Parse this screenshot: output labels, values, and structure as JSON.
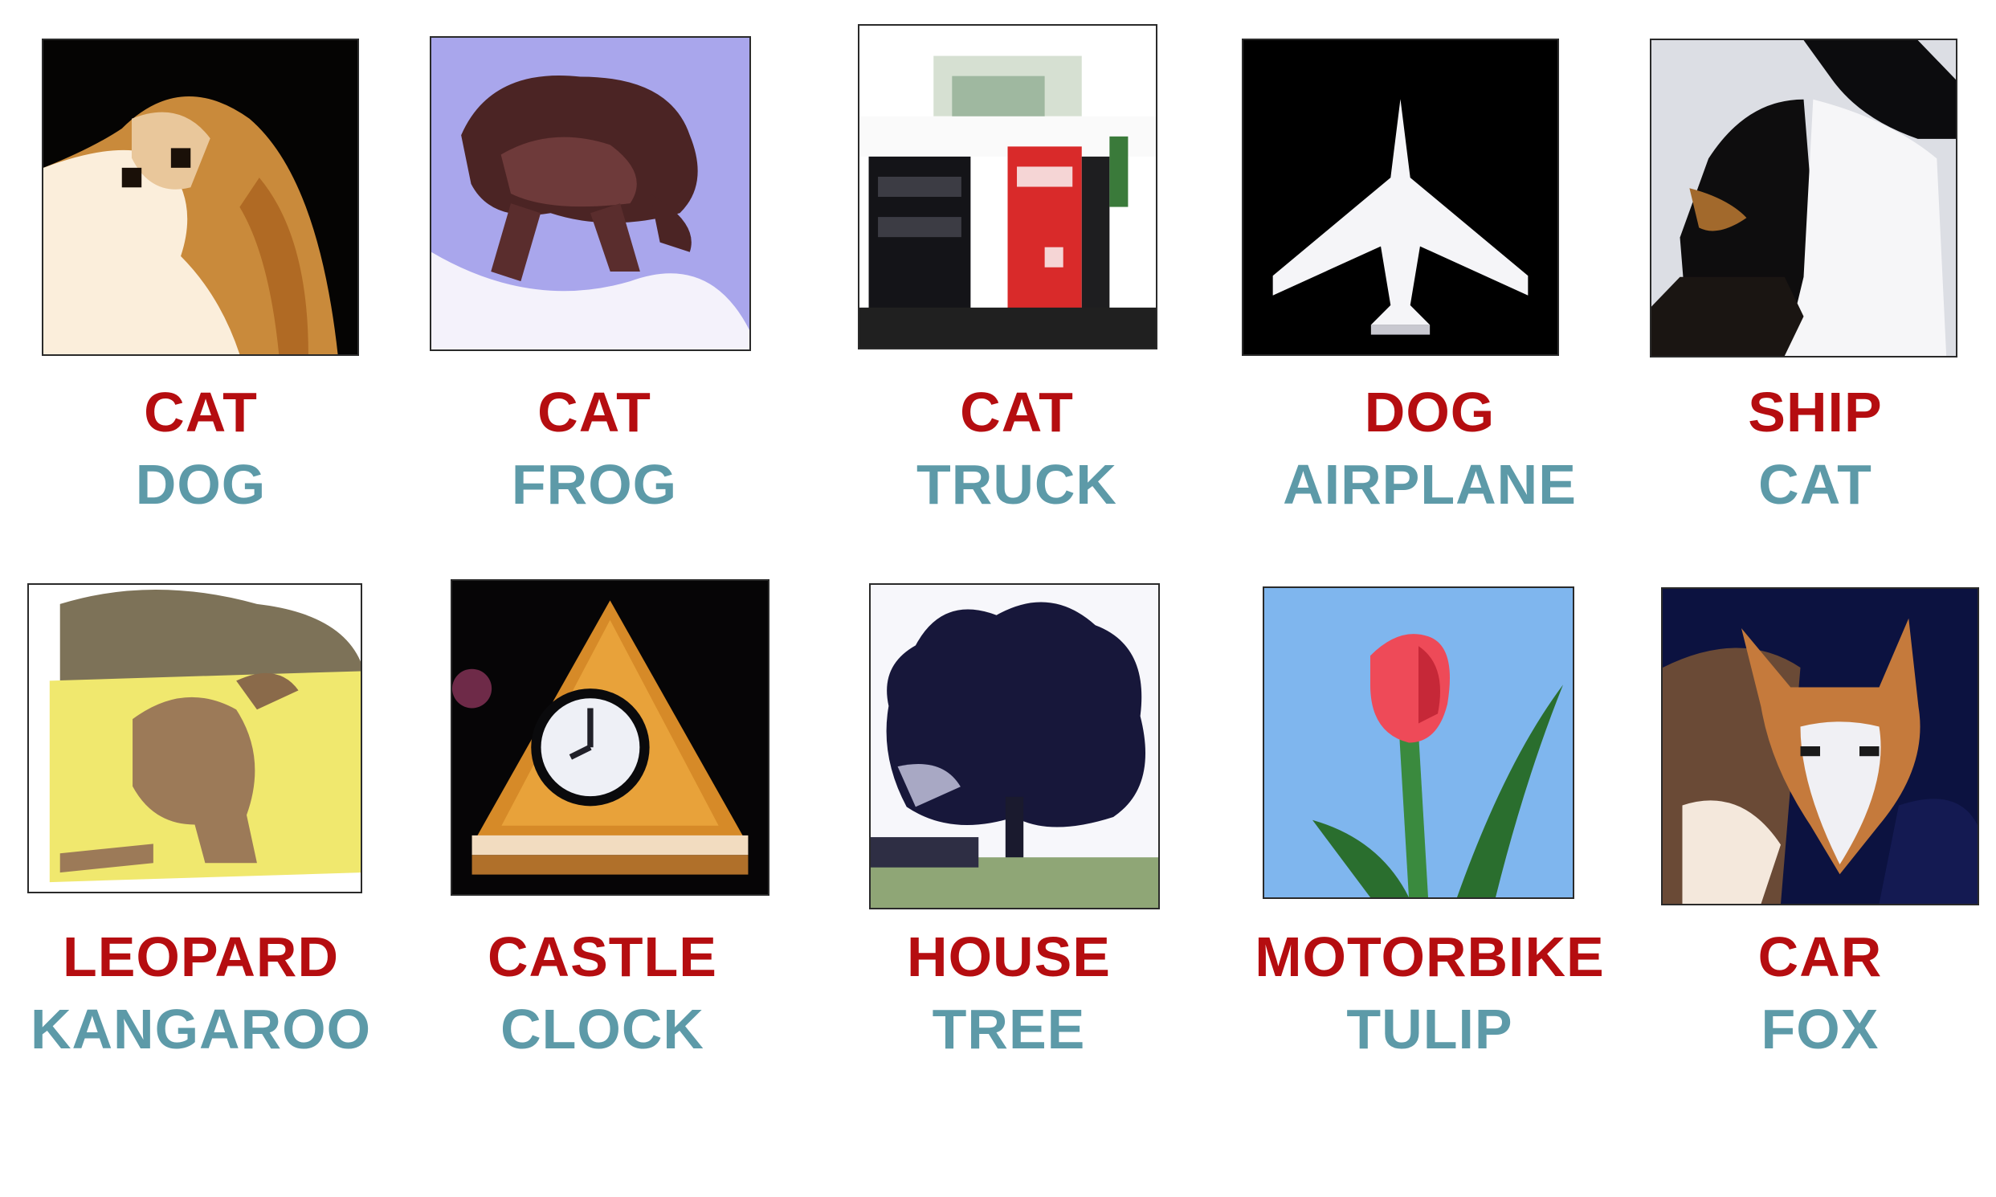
{
  "colors": {
    "predicted": "#b50d10",
    "true": "#5d9aa8",
    "background": "#ffffff"
  },
  "items": [
    {
      "predicted": "CAT",
      "true": "DOG",
      "image": "dog-image"
    },
    {
      "predicted": "CAT",
      "true": "FROG",
      "image": "frog-image"
    },
    {
      "predicted": "CAT",
      "true": "TRUCK",
      "image": "truck-image"
    },
    {
      "predicted": "DOG",
      "true": "AIRPLANE",
      "image": "airplane-image"
    },
    {
      "predicted": "SHIP",
      "true": "CAT",
      "image": "cat-image"
    },
    {
      "predicted": "LEOPARD",
      "true": "KANGAROO",
      "image": "kangaroo-image"
    },
    {
      "predicted": "CASTLE",
      "true": "CLOCK",
      "image": "clock-image"
    },
    {
      "predicted": "HOUSE",
      "true": "TREE",
      "image": "tree-image"
    },
    {
      "predicted": "MOTORBIKE",
      "true": "TULIP",
      "image": "tulip-image"
    },
    {
      "predicted": "CAR",
      "true": "FOX",
      "image": "fox-image"
    }
  ]
}
